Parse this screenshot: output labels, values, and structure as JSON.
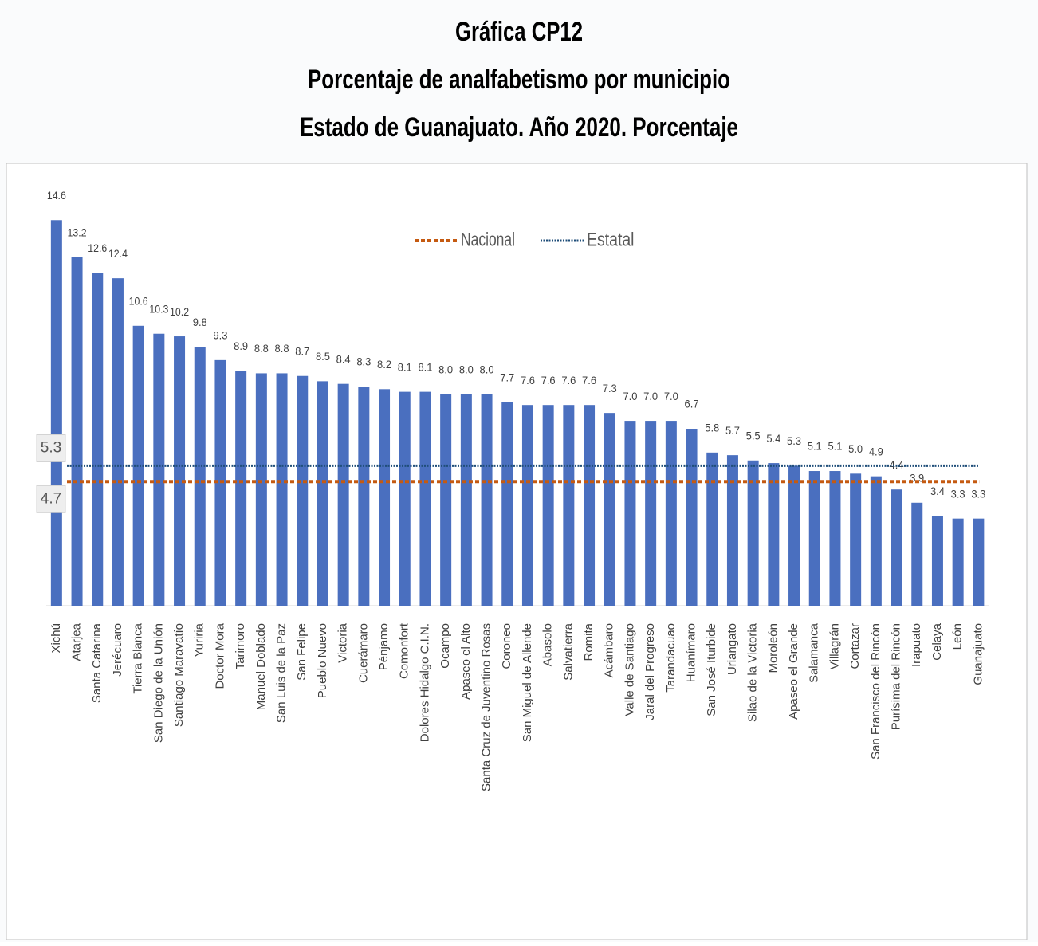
{
  "chart_data": {
    "type": "bar",
    "title": "Gráfica CP12",
    "subtitle": [
      "Porcentaje de analfabetismo por municipio",
      "Estado de Guanajuato. Año 2020. Porcentaje"
    ],
    "categories": [
      "Xichú",
      "Atarjea",
      "Santa Catarina",
      "Jerécuaro",
      "Tierra Blanca",
      "San Diego de la Unión",
      "Santiago Maravatío",
      "Yuriria",
      "Doctor Mora",
      "Tarimoro",
      "Manuel Doblado",
      "San Luis de la Paz",
      "San Felipe",
      "Pueblo Nuevo",
      "Victoria",
      "Cuerámaro",
      "Pénjamo",
      "Comonfort",
      "Dolores Hidalgo C.I.N.",
      "Ocampo",
      "Apaseo el Alto",
      "Santa Cruz de Juventino Rosas",
      "Coroneo",
      "San Miguel de Allende",
      "Abasolo",
      "Salvatierra",
      "Romita",
      "Acámbaro",
      "Valle de Santiago",
      "Jaral del Progreso",
      "Tarandacuao",
      "Huanímaro",
      "San José Iturbide",
      "Uriangato",
      "Silao de la Victoria",
      "Moroleón",
      "Apaseo el Grande",
      "Salamanca",
      "Villagrán",
      "Cortazar",
      "San Francisco del Rincón",
      "Purísima del Rincón",
      "Irapuato",
      "Celaya",
      "León",
      "Guanajuato"
    ],
    "values": [
      14.6,
      13.2,
      12.6,
      12.4,
      10.6,
      10.3,
      10.2,
      9.8,
      9.3,
      8.9,
      8.8,
      8.8,
      8.7,
      8.5,
      8.4,
      8.3,
      8.2,
      8.1,
      8.1,
      8.0,
      8.0,
      8.0,
      7.7,
      7.6,
      7.6,
      7.6,
      7.6,
      7.3,
      7.0,
      7.0,
      7.0,
      6.7,
      5.8,
      5.7,
      5.5,
      5.4,
      5.3,
      5.1,
      5.1,
      5.0,
      4.9,
      4.4,
      3.9,
      3.4,
      3.3,
      3.3
    ],
    "value_labels": [
      "14.6",
      "13.2",
      "12.6",
      "12.4",
      "10.6",
      "10.3",
      "10.2",
      "9.8",
      "9.3",
      "8.9",
      "8.8",
      "8.8",
      "8.7",
      "8.5",
      "8.4",
      "8.3",
      "8.2",
      "8.1",
      "8.1",
      "8.0",
      "8.0",
      "8.0",
      "7.7",
      "7.6",
      "7.6",
      "7.6",
      "7.6",
      "7.3",
      "7.0",
      "7.0",
      "7.0",
      "6.7",
      "5.8",
      "5.7",
      "5.5",
      "5.4",
      "5.3",
      "5.1",
      "5.1",
      "5.0",
      "4.9",
      "4.4",
      "3.9",
      "3.4",
      "3.3",
      "3.3"
    ],
    "color": "#4a6fbf",
    "ylim": [
      0,
      16.6
    ],
    "reference_lines": [
      {
        "name": "Nacional",
        "value": 4.7,
        "color": "#c55a11",
        "style": "dashed"
      },
      {
        "name": "Estatal",
        "value": 5.3,
        "color": "#1f4e79",
        "style": "dotted"
      }
    ]
  }
}
